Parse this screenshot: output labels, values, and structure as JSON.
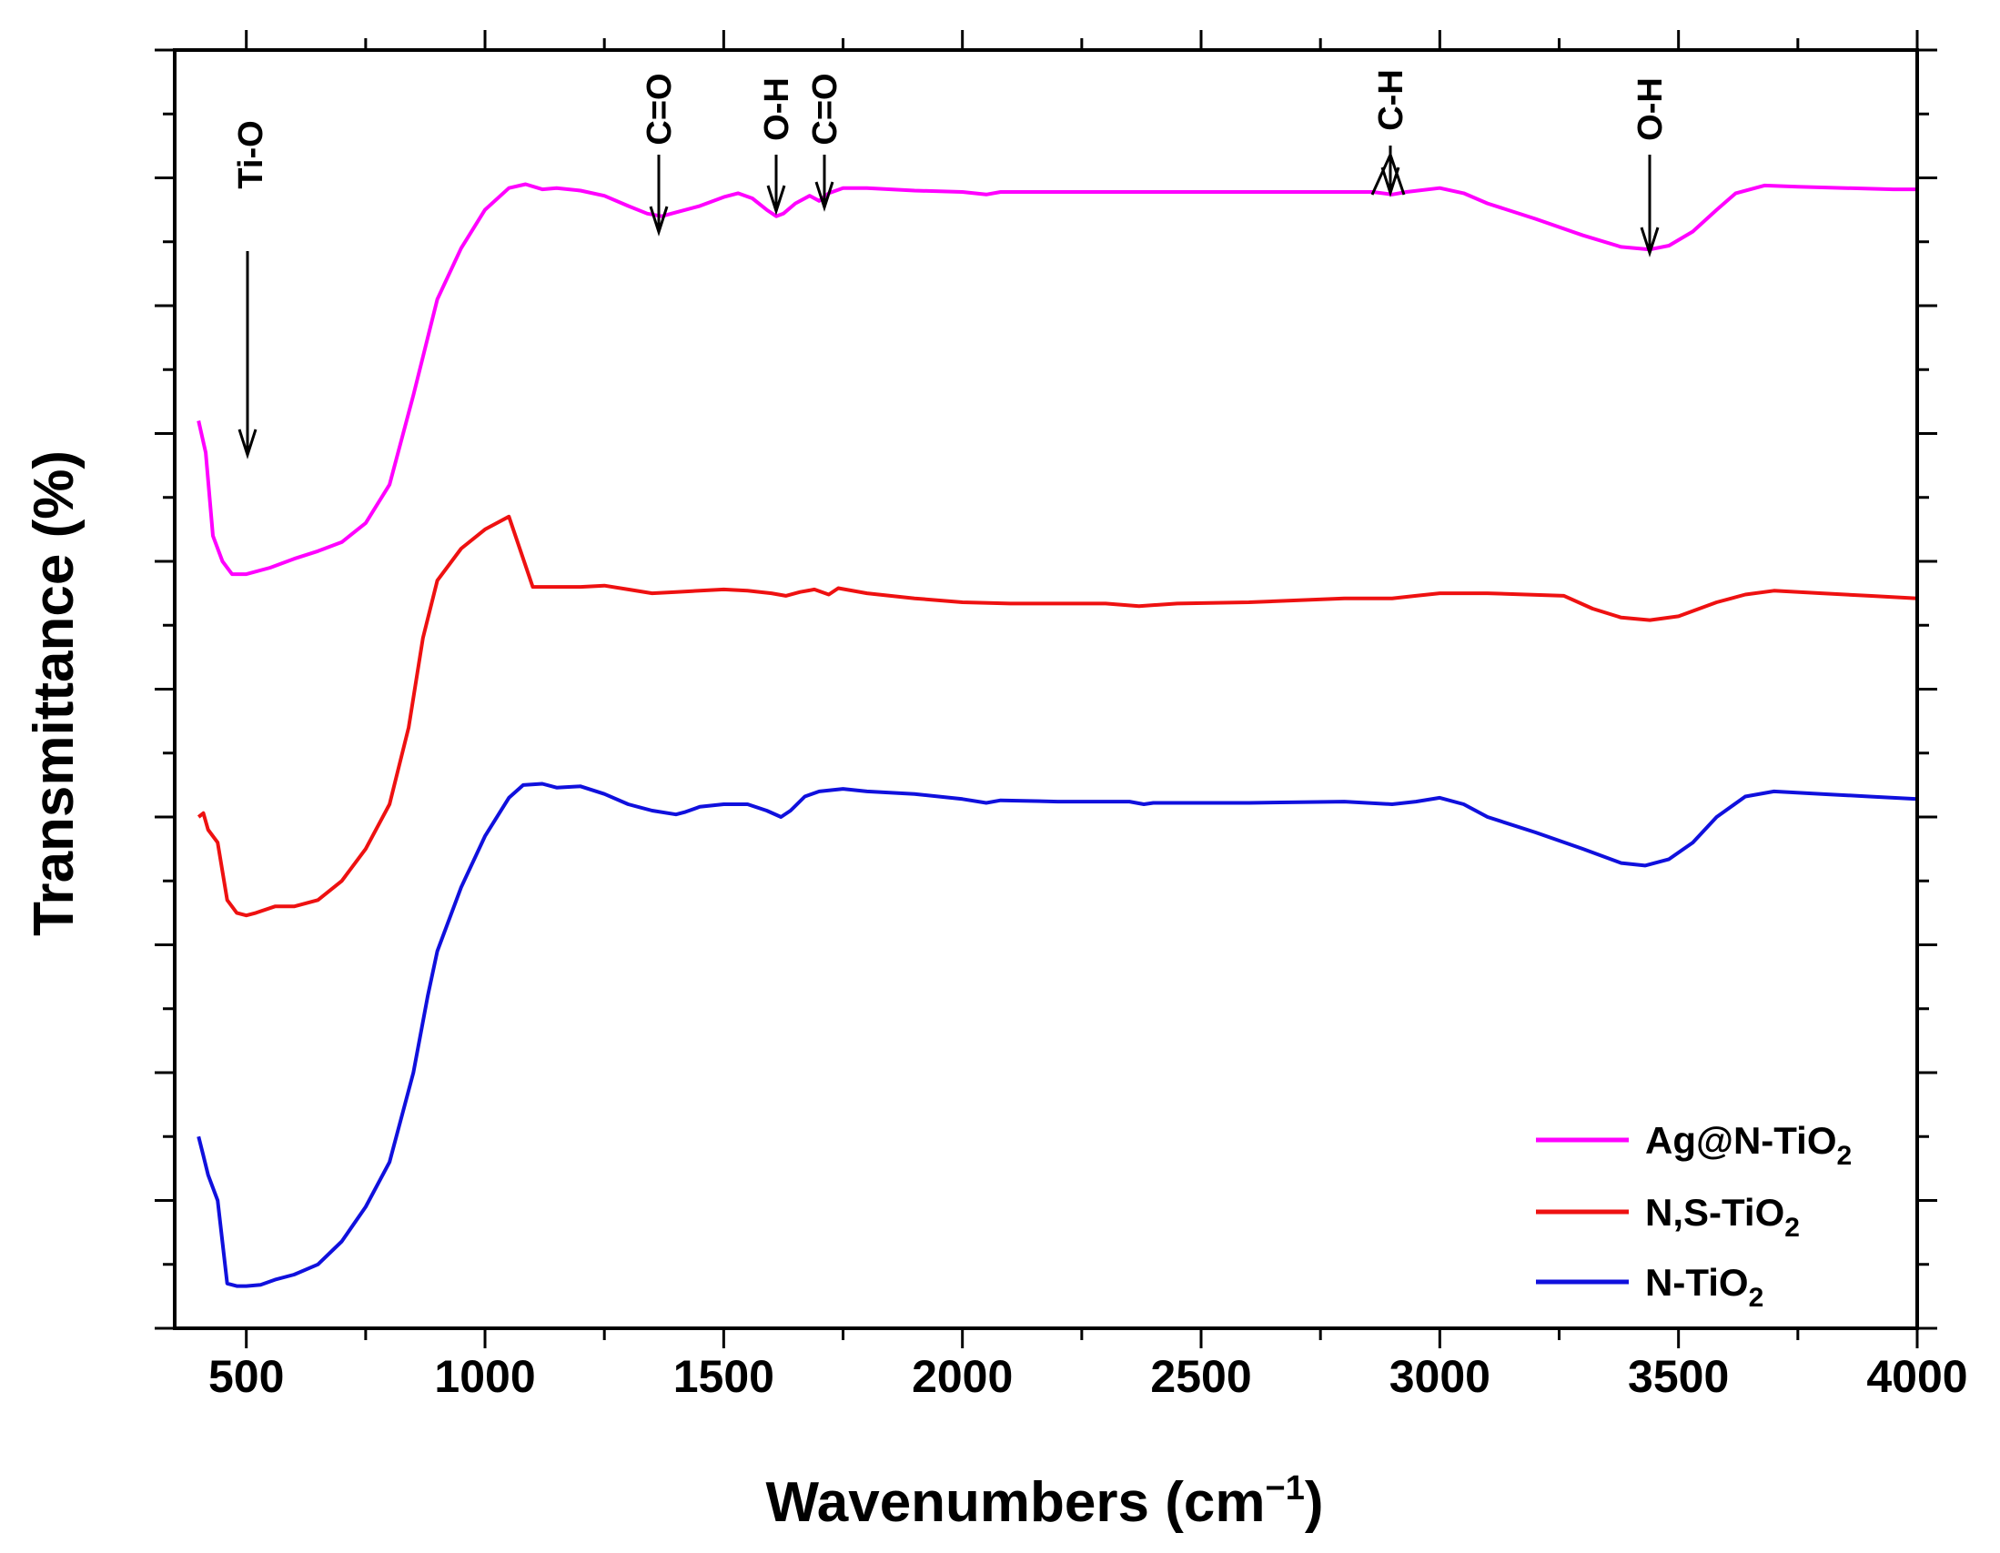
{
  "chart_data": {
    "type": "line",
    "title": "",
    "xlabel": "Wavenumbers (cm",
    "xlabel_sup": "−1",
    "xlabel_close": ")",
    "ylabel": "Transmittance (%)",
    "xlim": [
      350,
      4000
    ],
    "ylim": [
      0,
      100
    ],
    "xticks": [
      500,
      1000,
      1500,
      2000,
      2500,
      3000,
      3500,
      4000
    ],
    "xtick_labels": [
      "500",
      "1000",
      "1500",
      "2000",
      "2500",
      "3000",
      "3500",
      "4000"
    ],
    "y_tick_labels_shown": false,
    "legend_position": "bottom-right",
    "series": [
      {
        "name": "Ag@N-TiO2",
        "label_main": "Ag@N-TiO",
        "label_sub": "2",
        "color": "#ff00ff",
        "points": [
          [
            400,
            71
          ],
          [
            415,
            68.5
          ],
          [
            430,
            62
          ],
          [
            450,
            60
          ],
          [
            470,
            59
          ],
          [
            500,
            59
          ],
          [
            550,
            59.5
          ],
          [
            600,
            60.2
          ],
          [
            650,
            60.8
          ],
          [
            700,
            61.5
          ],
          [
            750,
            63
          ],
          [
            800,
            66
          ],
          [
            850,
            73
          ],
          [
            900,
            80.5
          ],
          [
            950,
            84.5
          ],
          [
            1000,
            87.5
          ],
          [
            1050,
            89.2
          ],
          [
            1085,
            89.5
          ],
          [
            1120,
            89.1
          ],
          [
            1150,
            89.2
          ],
          [
            1200,
            89.0
          ],
          [
            1250,
            88.6
          ],
          [
            1300,
            87.8
          ],
          [
            1340,
            87.2
          ],
          [
            1370,
            87.0
          ],
          [
            1400,
            87.3
          ],
          [
            1450,
            87.8
          ],
          [
            1500,
            88.5
          ],
          [
            1530,
            88.8
          ],
          [
            1560,
            88.4
          ],
          [
            1590,
            87.5
          ],
          [
            1610,
            87.0
          ],
          [
            1625,
            87.2
          ],
          [
            1650,
            88.0
          ],
          [
            1680,
            88.6
          ],
          [
            1700,
            88.2
          ],
          [
            1720,
            88.8
          ],
          [
            1750,
            89.2
          ],
          [
            1800,
            89.2
          ],
          [
            1900,
            89.0
          ],
          [
            2000,
            88.9
          ],
          [
            2050,
            88.7
          ],
          [
            2080,
            88.9
          ],
          [
            2200,
            88.9
          ],
          [
            2400,
            88.9
          ],
          [
            2600,
            88.9
          ],
          [
            2800,
            88.9
          ],
          [
            2860,
            88.9
          ],
          [
            2900,
            88.7
          ],
          [
            2930,
            88.9
          ],
          [
            3000,
            89.2
          ],
          [
            3050,
            88.8
          ],
          [
            3100,
            88.0
          ],
          [
            3200,
            86.8
          ],
          [
            3300,
            85.5
          ],
          [
            3380,
            84.6
          ],
          [
            3440,
            84.4
          ],
          [
            3480,
            84.7
          ],
          [
            3530,
            85.8
          ],
          [
            3580,
            87.5
          ],
          [
            3620,
            88.8
          ],
          [
            3680,
            89.4
          ],
          [
            3750,
            89.3
          ],
          [
            3850,
            89.2
          ],
          [
            3950,
            89.1
          ],
          [
            4000,
            89.1
          ]
        ]
      },
      {
        "name": "N,S-TiO2",
        "label_main": "N,S-TiO",
        "label_sub": "2",
        "color": "#ee1111",
        "points": [
          [
            400,
            40
          ],
          [
            410,
            40.3
          ],
          [
            420,
            39
          ],
          [
            440,
            38
          ],
          [
            460,
            33.5
          ],
          [
            480,
            32.5
          ],
          [
            500,
            32.3
          ],
          [
            520,
            32.5
          ],
          [
            560,
            33
          ],
          [
            600,
            33
          ],
          [
            650,
            33.5
          ],
          [
            700,
            35
          ],
          [
            750,
            37.5
          ],
          [
            800,
            41
          ],
          [
            840,
            47
          ],
          [
            870,
            54
          ],
          [
            900,
            58.5
          ],
          [
            950,
            61
          ],
          [
            1000,
            62.5
          ],
          [
            1050,
            63.5
          ],
          [
            1100,
            58.0
          ],
          [
            1150,
            58.0
          ],
          [
            1200,
            58.0
          ],
          [
            1250,
            58.1
          ],
          [
            1300,
            57.8
          ],
          [
            1350,
            57.5
          ],
          [
            1400,
            57.6
          ],
          [
            1450,
            57.7
          ],
          [
            1500,
            57.8
          ],
          [
            1550,
            57.7
          ],
          [
            1600,
            57.5
          ],
          [
            1630,
            57.3
          ],
          [
            1660,
            57.6
          ],
          [
            1690,
            57.8
          ],
          [
            1720,
            57.4
          ],
          [
            1740,
            57.9
          ],
          [
            1800,
            57.5
          ],
          [
            1900,
            57.1
          ],
          [
            2000,
            56.8
          ],
          [
            2100,
            56.7
          ],
          [
            2200,
            56.7
          ],
          [
            2300,
            56.7
          ],
          [
            2370,
            56.5
          ],
          [
            2450,
            56.7
          ],
          [
            2600,
            56.8
          ],
          [
            2800,
            57.1
          ],
          [
            2900,
            57.1
          ],
          [
            2950,
            57.3
          ],
          [
            3000,
            57.5
          ],
          [
            3100,
            57.5
          ],
          [
            3260,
            57.3
          ],
          [
            3320,
            56.3
          ],
          [
            3380,
            55.6
          ],
          [
            3440,
            55.4
          ],
          [
            3500,
            55.7
          ],
          [
            3580,
            56.8
          ],
          [
            3640,
            57.4
          ],
          [
            3700,
            57.7
          ],
          [
            3800,
            57.5
          ],
          [
            3900,
            57.3
          ],
          [
            4000,
            57.1
          ]
        ]
      },
      {
        "name": "N-TiO2",
        "label_main": "N-TiO",
        "label_sub": "2",
        "color": "#1010dd",
        "points": [
          [
            400,
            15
          ],
          [
            410,
            13.5
          ],
          [
            420,
            12
          ],
          [
            440,
            10
          ],
          [
            460,
            3.5
          ],
          [
            480,
            3.3
          ],
          [
            500,
            3.3
          ],
          [
            530,
            3.4
          ],
          [
            560,
            3.8
          ],
          [
            600,
            4.2
          ],
          [
            650,
            5.0
          ],
          [
            700,
            6.8
          ],
          [
            750,
            9.5
          ],
          [
            800,
            13
          ],
          [
            850,
            20
          ],
          [
            880,
            26
          ],
          [
            900,
            29.5
          ],
          [
            950,
            34.5
          ],
          [
            1000,
            38.5
          ],
          [
            1050,
            41.5
          ],
          [
            1080,
            42.5
          ],
          [
            1120,
            42.6
          ],
          [
            1150,
            42.3
          ],
          [
            1200,
            42.4
          ],
          [
            1250,
            41.8
          ],
          [
            1300,
            41.0
          ],
          [
            1350,
            40.5
          ],
          [
            1400,
            40.2
          ],
          [
            1420,
            40.4
          ],
          [
            1450,
            40.8
          ],
          [
            1500,
            41.0
          ],
          [
            1550,
            41.0
          ],
          [
            1590,
            40.5
          ],
          [
            1620,
            40.0
          ],
          [
            1640,
            40.5
          ],
          [
            1670,
            41.6
          ],
          [
            1700,
            42.0
          ],
          [
            1750,
            42.2
          ],
          [
            1800,
            42.0
          ],
          [
            1900,
            41.8
          ],
          [
            2000,
            41.4
          ],
          [
            2050,
            41.1
          ],
          [
            2080,
            41.3
          ],
          [
            2200,
            41.2
          ],
          [
            2350,
            41.2
          ],
          [
            2380,
            41.0
          ],
          [
            2400,
            41.1
          ],
          [
            2600,
            41.1
          ],
          [
            2800,
            41.2
          ],
          [
            2900,
            41.0
          ],
          [
            2950,
            41.2
          ],
          [
            3000,
            41.5
          ],
          [
            3050,
            41.0
          ],
          [
            3100,
            40.0
          ],
          [
            3200,
            38.8
          ],
          [
            3300,
            37.5
          ],
          [
            3380,
            36.4
          ],
          [
            3430,
            36.2
          ],
          [
            3480,
            36.7
          ],
          [
            3530,
            38.0
          ],
          [
            3580,
            40.0
          ],
          [
            3640,
            41.6
          ],
          [
            3700,
            42.0
          ],
          [
            3800,
            41.8
          ],
          [
            3900,
            41.6
          ],
          [
            4000,
            41.4
          ]
        ]
      }
    ],
    "annotations": [
      {
        "label": "Ti-O",
        "x": 500
      },
      {
        "label": "C=O",
        "x": 1365
      },
      {
        "label": "O-H",
        "x": 1610
      },
      {
        "label": "C=O",
        "x": 1700
      },
      {
        "label": "C-H",
        "x": 2890
      },
      {
        "label": "O-H",
        "x": 3440
      }
    ]
  }
}
